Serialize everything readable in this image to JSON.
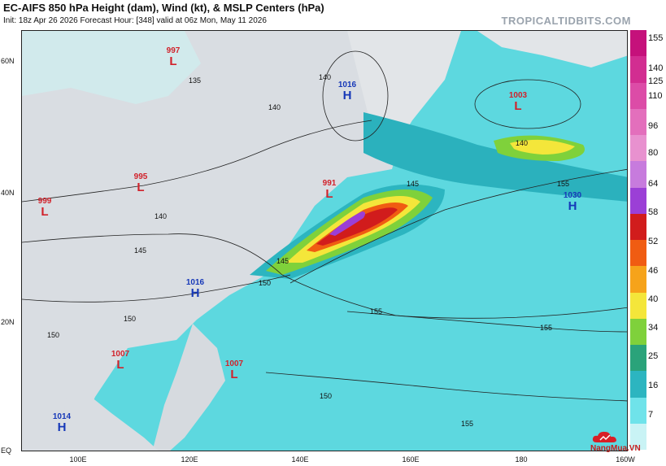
{
  "header": {
    "title": "EC-AIFS 850 hPa Height (dam), Wind (kt), & MSLP Centers (hPa)",
    "subtitle": "Init: 18z Apr 26 2026   Forecast Hour: [348]   valid at 06z Mon, May 11 2026",
    "brand": "TROPICALTIDBITS.COM"
  },
  "axes": {
    "lat_labels": [
      "60N",
      "40N",
      "20N",
      "EQ"
    ],
    "lon_labels": [
      "100E",
      "120E",
      "140E",
      "160E",
      "180",
      "160W"
    ]
  },
  "colorbar": {
    "labels": [
      "155",
      "140",
      "125",
      "110",
      "96",
      "80",
      "64",
      "58",
      "52",
      "46",
      "40",
      "34",
      "25",
      "16",
      "7"
    ],
    "colors": [
      "#c5117b",
      "#d22d91",
      "#dc4ca7",
      "#e36fbc",
      "#e891cf",
      "#c77bdd",
      "#9b3fd6",
      "#d11c1c",
      "#f05c12",
      "#f6a31a",
      "#f4e63a",
      "#7fd13b",
      "#2aa37a",
      "#2cb5c0",
      "#6fe3ea",
      "#c9f3f5"
    ]
  },
  "centers": [
    {
      "type": "L",
      "pressure": "997"
    },
    {
      "type": "H",
      "pressure": "1016"
    },
    {
      "type": "L",
      "pressure": "1003"
    },
    {
      "type": "L",
      "pressure": "995"
    },
    {
      "type": "L",
      "pressure": "999"
    },
    {
      "type": "L",
      "pressure": "991"
    },
    {
      "type": "H",
      "pressure": "1030"
    },
    {
      "type": "H",
      "pressure": "1016"
    },
    {
      "type": "L",
      "pressure": "1007"
    },
    {
      "type": "L",
      "pressure": "1007"
    },
    {
      "type": "H",
      "pressure": "1014"
    }
  ],
  "contour_labels": [
    "135",
    "140",
    "140",
    "145",
    "145",
    "150",
    "155",
    "140",
    "150",
    "155",
    "155",
    "150",
    "150",
    "155",
    "140",
    "145"
  ],
  "watermark": "NangMua.VN"
}
